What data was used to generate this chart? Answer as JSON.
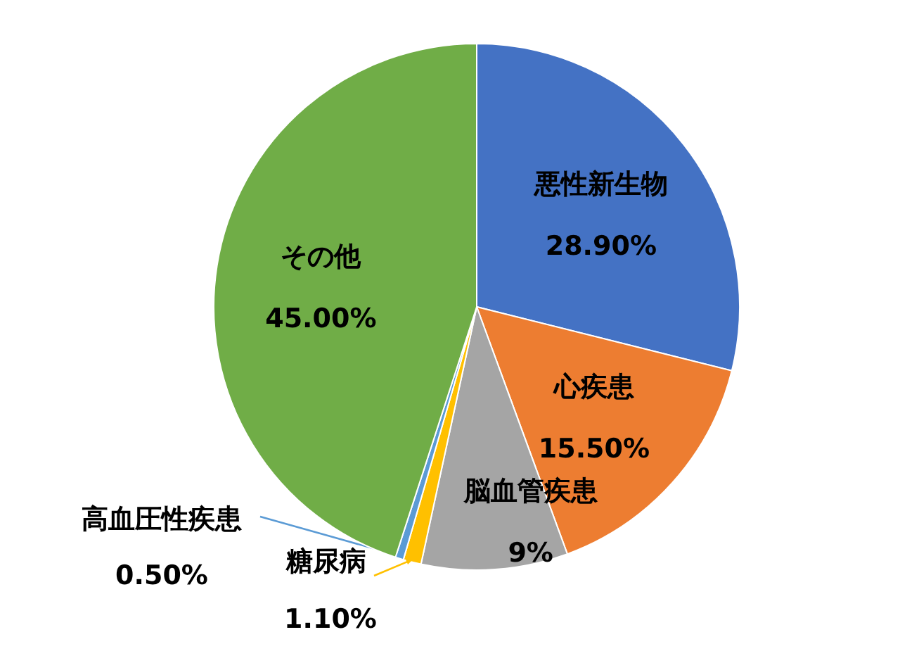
{
  "chart_data": {
    "type": "pie",
    "categories": [
      "悪性新生物",
      "心疾患",
      "脳血管疾患",
      "糖尿病",
      "高血圧性疾患",
      "その他"
    ],
    "values": [
      28.9,
      15.5,
      9,
      1.1,
      0.5,
      45.0
    ],
    "colors": [
      "#4472c4",
      "#ed7d31",
      "#a5a5a5",
      "#ffc000",
      "#5b9bd5",
      "#70ad47"
    ],
    "value_labels": [
      "28.90%",
      "15.50%",
      "9%",
      "1.10%",
      "0.50%",
      "45.00%"
    ],
    "legend": false
  }
}
